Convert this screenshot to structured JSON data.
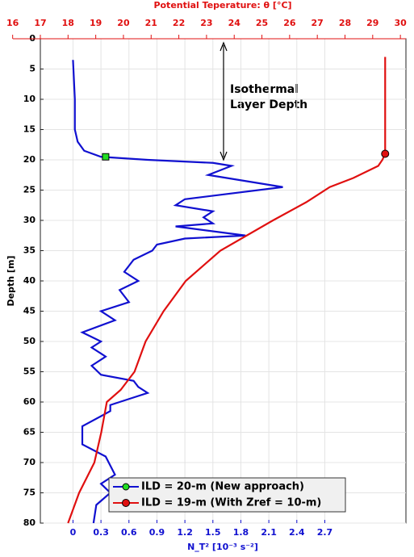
{
  "chart_data": {
    "type": "line",
    "top_axis_label": "Potential Teperature: θ [°C]",
    "bottom_axis_label": "N_T² [10⁻³ s⁻²]",
    "y_axis_label": "Depth [m]",
    "annotation": [
      "Isothermal",
      "Layer Depth"
    ],
    "ylim": [
      0,
      80
    ],
    "yticks": [
      0,
      5,
      10,
      15,
      20,
      25,
      30,
      35,
      40,
      45,
      50,
      55,
      60,
      65,
      70,
      75,
      80
    ],
    "xlim": [
      -0.35,
      3.57
    ],
    "xticks": [
      0,
      0.3,
      0.6,
      0.9,
      1.2,
      1.5,
      1.8,
      2.1,
      2.4,
      2.7
    ],
    "x2lim": [
      17,
      30.2
    ],
    "x2ticks": [
      16,
      17,
      18,
      19,
      20,
      21,
      22,
      23,
      24,
      25,
      26,
      27,
      28,
      29,
      30
    ],
    "grid": true,
    "y_inverted": true,
    "series": [
      {
        "name": "ILD = 20-m (New approach)",
        "color": "#1010d0",
        "axis": "x",
        "marker_color": "#22dd22",
        "marker_depth": 19.5,
        "marker_value": 0.35,
        "depth": [
          3.5,
          10,
          15,
          17,
          18.5,
          19.5,
          20,
          20.5,
          21,
          22.5,
          24.5,
          26.5,
          27.5,
          28.5,
          29.5,
          30.5,
          31,
          32,
          32.5,
          33,
          34,
          35,
          36.5,
          37.5,
          38.5,
          40,
          41.5,
          43.5,
          45,
          46.5,
          48.5,
          50,
          51,
          52.5,
          54,
          55.5,
          56.5,
          57.5,
          58.5,
          59.5,
          60.5,
          61.5,
          64,
          67,
          69,
          70.5,
          72,
          73.5,
          75,
          77,
          80
        ],
        "values": [
          0.0,
          0.02,
          0.02,
          0.05,
          0.12,
          0.3,
          0.8,
          1.5,
          1.7,
          1.45,
          2.25,
          1.2,
          1.1,
          1.5,
          1.4,
          1.5,
          1.1,
          1.6,
          1.85,
          1.2,
          0.9,
          0.85,
          0.65,
          0.6,
          0.55,
          0.7,
          0.5,
          0.6,
          0.3,
          0.45,
          0.1,
          0.3,
          0.2,
          0.35,
          0.2,
          0.3,
          0.65,
          0.7,
          0.8,
          0.6,
          0.4,
          0.4,
          0.1,
          0.1,
          0.35,
          0.4,
          0.45,
          0.3,
          0.4,
          0.25,
          0.22
        ]
      },
      {
        "name": "ILD = 19-m (With Zref = 10-m)",
        "color": "#e01010",
        "axis": "x2",
        "marker_color": "#e01010",
        "marker_depth": 19,
        "marker_value": 29.45,
        "depth": [
          3,
          19,
          20,
          21,
          23,
          24.5,
          27,
          30,
          35,
          40,
          45,
          50,
          55,
          58,
          60,
          65,
          70,
          75,
          80
        ],
        "values": [
          29.45,
          29.45,
          29.35,
          29.2,
          28.3,
          27.45,
          26.6,
          25.4,
          23.5,
          22.25,
          21.45,
          20.8,
          20.4,
          19.9,
          19.4,
          19.2,
          18.95,
          18.4,
          18.0
        ]
      }
    ]
  }
}
